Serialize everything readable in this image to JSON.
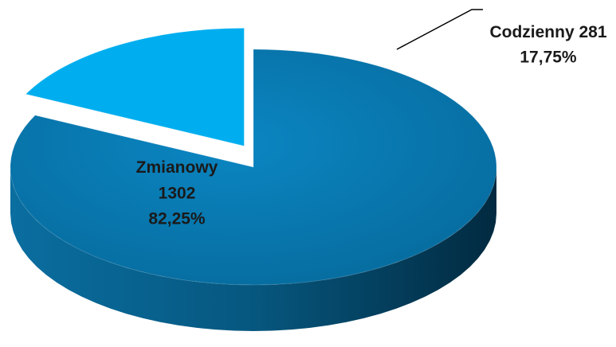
{
  "chart_data": {
    "type": "pie",
    "categories": [
      "Zmianowy",
      "Codzienny"
    ],
    "values": [
      1302,
      281
    ],
    "percentages": [
      82.25,
      17.75
    ],
    "percentage_labels": [
      "82,25%",
      "17,75%"
    ],
    "colors": [
      "#0a7db6",
      "#00aeef"
    ],
    "exploded": [
      false,
      true
    ]
  }
}
